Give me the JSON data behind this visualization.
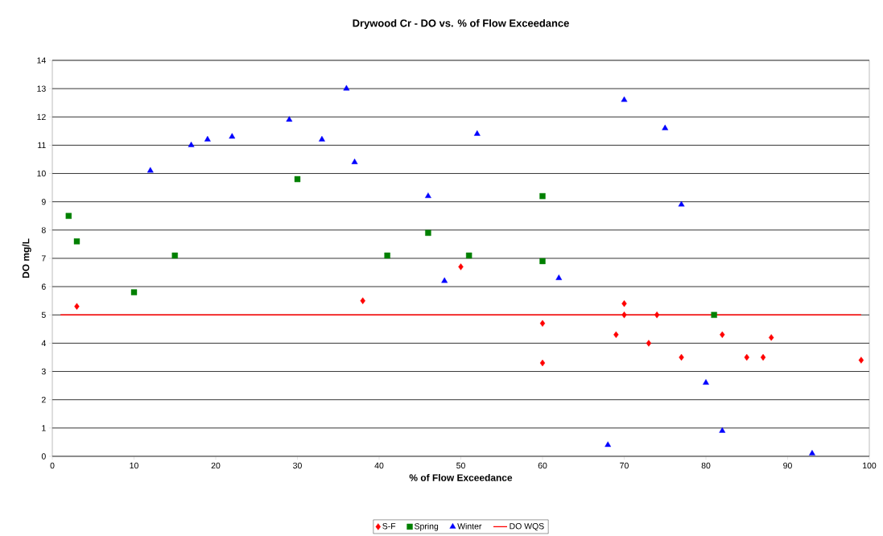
{
  "chart_data": {
    "type": "scatter",
    "title": "Drywood Cr - DO vs. % of Flow Exceedance",
    "xlabel": "% of Flow Exceedance",
    "ylabel": "DO mg/L",
    "xlim": [
      0,
      100
    ],
    "xticks": [
      0,
      10,
      20,
      30,
      40,
      50,
      60,
      70,
      80,
      90,
      100
    ],
    "ylim": [
      0,
      14
    ],
    "yticks": [
      0,
      1,
      2,
      3,
      4,
      5,
      6,
      7,
      8,
      9,
      10,
      11,
      12,
      13,
      14
    ],
    "grid": "y",
    "legend": "bottom",
    "series": [
      {
        "name": "S-F",
        "color": "#ff0000",
        "marker": "diamond",
        "x": [
          3,
          38,
          50,
          60,
          60,
          69,
          70,
          70,
          73,
          74,
          77,
          82,
          85,
          87,
          88,
          99
        ],
        "values": [
          5.3,
          5.5,
          6.7,
          4.7,
          3.3,
          4.3,
          5.4,
          5.0,
          4.0,
          5.0,
          3.5,
          4.3,
          3.5,
          3.5,
          4.2,
          3.4
        ]
      },
      {
        "name": "Spring",
        "color": "#008000",
        "marker": "square",
        "x": [
          2,
          3,
          10,
          15,
          30,
          41,
          46,
          51,
          60,
          60,
          81
        ],
        "values": [
          8.5,
          7.6,
          5.8,
          7.1,
          9.8,
          7.1,
          7.9,
          7.1,
          9.2,
          6.9,
          5.0
        ]
      },
      {
        "name": "Winter",
        "color": "#0000ff",
        "marker": "triangle",
        "x": [
          12,
          17,
          19,
          22,
          29,
          33,
          36,
          37,
          46,
          48,
          52,
          62,
          68,
          70,
          75,
          77,
          80,
          82,
          93
        ],
        "values": [
          10.1,
          11.0,
          11.2,
          11.3,
          11.9,
          11.2,
          13.0,
          10.4,
          9.2,
          6.2,
          11.4,
          6.3,
          0.4,
          12.6,
          11.6,
          8.9,
          2.6,
          0.9,
          0.1
        ]
      },
      {
        "name": "DO WQS",
        "type": "line",
        "color": "#ff0000",
        "marker": "none",
        "x": [
          1,
          99
        ],
        "values": [
          5,
          5
        ]
      }
    ]
  }
}
